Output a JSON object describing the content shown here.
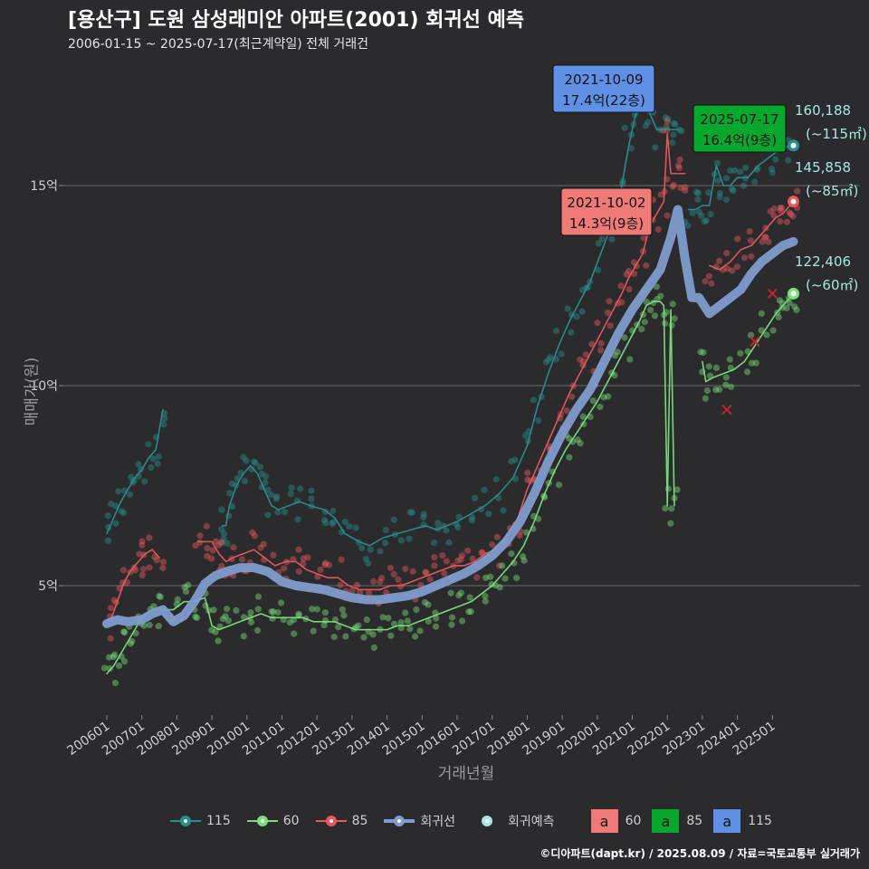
{
  "title": "[용산구] 도원 삼성래미안 아파트(2001) 회귀선 예측",
  "subtitle": "2006-01-15 ~ 2025-07-17(최근계약일) 전체 거래건",
  "footer": "©디아파트(dapt.kr) / 2025.08.09 / 자료=국토교통부 실거래가",
  "legend": {
    "items": [
      {
        "label": "115",
        "color": "#2a8f8c",
        "kind": "series"
      },
      {
        "label": "60",
        "color": "#7be07b",
        "kind": "series"
      },
      {
        "label": "85",
        "color": "#e8585e",
        "kind": "series"
      },
      {
        "label": "회귀선",
        "color": "#7f9ccc",
        "kind": "reg"
      },
      {
        "label": "회귀예측",
        "color": "#a8e6e2",
        "kind": "pred"
      }
    ],
    "boxes": [
      {
        "letter": "a",
        "label": "60",
        "color": "#f07a78"
      },
      {
        "letter": "a",
        "label": "85",
        "color": "#08a82e"
      },
      {
        "letter": "a",
        "label": "115",
        "color": "#5f90e6"
      }
    ]
  },
  "chart_data": {
    "type": "line",
    "xlabel": "거래년월",
    "ylabel": "매매가(원)",
    "x_ticks": [
      "200601",
      "200701",
      "200801",
      "200901",
      "201001",
      "201101",
      "201201",
      "201301",
      "201401",
      "201501",
      "201601",
      "201701",
      "201801",
      "201901",
      "202001",
      "202101",
      "202201",
      "202301",
      "202401",
      "202501"
    ],
    "y_ticks": [
      {
        "value": 5,
        "label": "5억"
      },
      {
        "value": 10,
        "label": "10억"
      },
      {
        "value": 15,
        "label": "15억"
      }
    ],
    "xlim": [
      2006.0,
      2025.9
    ],
    "ylim": [
      2.7,
      18.0
    ],
    "grid": true,
    "series": [
      {
        "name": "115",
        "color": "#2a8f8c",
        "points": [
          [
            2006.0,
            6.3
          ],
          [
            2006.2,
            6.7
          ],
          [
            2006.4,
            7.1
          ],
          [
            2006.6,
            7.4
          ],
          [
            2006.8,
            7.7
          ],
          [
            2007.0,
            7.9
          ],
          [
            2007.2,
            8.2
          ],
          [
            2007.4,
            8.4
          ],
          [
            2007.6,
            9.4
          ],
          null,
          [
            2009.3,
            6.5
          ],
          [
            2009.4,
            6.5
          ],
          [
            2009.5,
            7.0
          ],
          [
            2009.7,
            7.5
          ],
          [
            2009.9,
            7.8
          ],
          [
            2010.1,
            8.0
          ],
          [
            2010.3,
            7.8
          ],
          [
            2010.5,
            7.4
          ],
          [
            2010.7,
            7.0
          ],
          [
            2010.9,
            6.9
          ],
          [
            2011.2,
            7.0
          ],
          [
            2011.5,
            7.1
          ],
          [
            2011.8,
            7.0
          ],
          [
            2012.2,
            6.9
          ],
          [
            2012.5,
            6.7
          ],
          [
            2012.8,
            6.3
          ],
          [
            2013.2,
            6.1
          ],
          [
            2013.5,
            6.0
          ],
          [
            2013.9,
            6.2
          ],
          [
            2014.3,
            6.3
          ],
          [
            2014.7,
            6.4
          ],
          [
            2015.1,
            6.5
          ],
          [
            2015.4,
            6.4
          ],
          [
            2015.7,
            6.5
          ],
          [
            2016.0,
            6.6
          ],
          [
            2016.4,
            6.8
          ],
          [
            2016.8,
            7.0
          ],
          [
            2017.2,
            7.3
          ],
          [
            2017.6,
            7.7
          ],
          [
            2018.0,
            8.5
          ],
          [
            2018.3,
            9.5
          ],
          [
            2018.6,
            10.3
          ],
          [
            2018.9,
            11.0
          ],
          [
            2019.2,
            11.6
          ],
          [
            2019.5,
            12.1
          ],
          [
            2019.8,
            12.6
          ],
          [
            2020.1,
            13.3
          ],
          [
            2020.4,
            14.0
          ],
          [
            2020.7,
            15.0
          ],
          [
            2020.9,
            16.0
          ],
          [
            2021.1,
            16.8
          ],
          [
            2021.3,
            16.9
          ],
          [
            2021.5,
            16.8
          ],
          [
            2021.7,
            16.4
          ],
          [
            2021.9,
            16.4
          ],
          [
            2022.1,
            16.4
          ],
          [
            2022.3,
            16.4
          ],
          null,
          [
            2022.6,
            14.4
          ],
          [
            2022.8,
            14.4
          ],
          [
            2023.0,
            14.5
          ],
          [
            2023.2,
            14.5
          ],
          [
            2023.4,
            15.5
          ],
          [
            2023.6,
            15.0
          ],
          [
            2023.8,
            15.0
          ],
          [
            2024.0,
            15.2
          ],
          [
            2024.3,
            15.2
          ],
          [
            2024.6,
            15.5
          ],
          [
            2024.9,
            15.7
          ],
          [
            2025.2,
            15.9
          ],
          [
            2025.5,
            16.0
          ]
        ]
      },
      {
        "name": "85",
        "color": "#e8585e",
        "points": [
          [
            2006.1,
            4.1
          ],
          [
            2006.3,
            4.6
          ],
          [
            2006.5,
            5.1
          ],
          [
            2006.7,
            5.4
          ],
          [
            2006.9,
            5.6
          ],
          [
            2007.1,
            5.8
          ],
          [
            2007.3,
            5.9
          ],
          [
            2007.5,
            5.7
          ],
          null,
          [
            2008.6,
            6.1
          ],
          [
            2008.8,
            6.1
          ],
          [
            2009.0,
            6.1
          ],
          [
            2009.2,
            5.8
          ],
          [
            2009.4,
            5.6
          ],
          [
            2009.6,
            5.7
          ],
          [
            2009.9,
            5.8
          ],
          [
            2010.2,
            5.9
          ],
          [
            2010.5,
            5.7
          ],
          [
            2010.8,
            5.5
          ],
          [
            2011.1,
            5.6
          ],
          [
            2011.4,
            5.6
          ],
          [
            2011.7,
            5.4
          ],
          [
            2012.0,
            5.3
          ],
          [
            2012.3,
            5.2
          ],
          [
            2012.6,
            5.2
          ],
          [
            2012.9,
            5.0
          ],
          [
            2013.2,
            4.9
          ],
          [
            2013.5,
            4.9
          ],
          [
            2013.8,
            4.9
          ],
          [
            2014.1,
            5.0
          ],
          [
            2014.4,
            5.0
          ],
          [
            2014.7,
            5.1
          ],
          [
            2015.0,
            5.2
          ],
          [
            2015.3,
            5.3
          ],
          [
            2015.6,
            5.4
          ],
          [
            2015.9,
            5.5
          ],
          [
            2016.2,
            5.5
          ],
          [
            2016.5,
            5.6
          ],
          [
            2016.8,
            5.8
          ],
          [
            2017.1,
            5.9
          ],
          [
            2017.4,
            6.2
          ],
          [
            2017.7,
            6.6
          ],
          [
            2018.0,
            7.4
          ],
          [
            2018.3,
            8.0
          ],
          [
            2018.6,
            8.6
          ],
          [
            2018.9,
            9.2
          ],
          [
            2019.2,
            9.8
          ],
          [
            2019.5,
            10.3
          ],
          [
            2019.8,
            10.8
          ],
          [
            2020.1,
            11.3
          ],
          [
            2020.4,
            11.8
          ],
          [
            2020.7,
            12.3
          ],
          [
            2020.9,
            12.7
          ],
          [
            2021.1,
            13.0
          ],
          [
            2021.3,
            13.3
          ],
          [
            2021.5,
            14.0
          ],
          [
            2021.7,
            14.3
          ],
          [
            2021.9,
            14.6
          ],
          [
            2022.0,
            16.3
          ],
          [
            2022.1,
            15.3
          ],
          [
            2022.3,
            15.3
          ],
          [
            2022.5,
            15.3
          ],
          null,
          [
            2023.2,
            13.0
          ],
          [
            2023.5,
            12.9
          ],
          [
            2023.8,
            13.1
          ],
          [
            2024.1,
            13.4
          ],
          [
            2024.4,
            13.5
          ],
          [
            2024.7,
            13.8
          ],
          [
            2024.9,
            14.0
          ],
          [
            2025.1,
            14.2
          ],
          [
            2025.3,
            14.3
          ],
          [
            2025.5,
            14.5
          ],
          [
            2025.6,
            14.6
          ]
        ]
      },
      {
        "name": "60",
        "color": "#7be07b",
        "points": [
          [
            2006.0,
            2.8
          ],
          [
            2006.2,
            3.0
          ],
          [
            2006.4,
            3.3
          ],
          [
            2006.6,
            3.6
          ],
          [
            2006.8,
            3.9
          ],
          [
            2007.0,
            4.2
          ],
          [
            2007.3,
            4.4
          ],
          [
            2007.6,
            4.4
          ],
          [
            2007.9,
            4.4
          ],
          [
            2008.2,
            4.6
          ],
          [
            2008.5,
            4.6
          ],
          [
            2008.8,
            4.7
          ],
          [
            2009.0,
            4.0
          ],
          [
            2009.2,
            3.9
          ],
          [
            2009.5,
            4.0
          ],
          [
            2009.8,
            4.1
          ],
          [
            2010.1,
            4.2
          ],
          [
            2010.4,
            4.3
          ],
          [
            2010.7,
            4.2
          ],
          [
            2011.0,
            4.2
          ],
          [
            2011.3,
            4.2
          ],
          [
            2011.6,
            4.2
          ],
          [
            2011.9,
            4.1
          ],
          [
            2012.2,
            4.1
          ],
          [
            2012.5,
            4.1
          ],
          [
            2012.8,
            4.0
          ],
          [
            2013.1,
            3.9
          ],
          [
            2013.4,
            3.9
          ],
          [
            2013.7,
            3.9
          ],
          [
            2014.0,
            3.9
          ],
          [
            2014.3,
            4.0
          ],
          [
            2014.6,
            4.0
          ],
          [
            2014.9,
            4.1
          ],
          [
            2015.2,
            4.2
          ],
          [
            2015.5,
            4.3
          ],
          [
            2015.8,
            4.4
          ],
          [
            2016.1,
            4.5
          ],
          [
            2016.4,
            4.6
          ],
          [
            2016.7,
            4.8
          ],
          [
            2017.0,
            5.0
          ],
          [
            2017.3,
            5.3
          ],
          [
            2017.6,
            5.6
          ],
          [
            2017.9,
            6.0
          ],
          [
            2018.2,
            6.6
          ],
          [
            2018.5,
            7.3
          ],
          [
            2018.8,
            7.9
          ],
          [
            2019.1,
            8.4
          ],
          [
            2019.4,
            8.8
          ],
          [
            2019.7,
            9.2
          ],
          [
            2020.0,
            9.6
          ],
          [
            2020.3,
            10.1
          ],
          [
            2020.6,
            10.6
          ],
          [
            2020.9,
            11.1
          ],
          [
            2021.2,
            11.6
          ],
          [
            2021.4,
            12.0
          ],
          [
            2021.6,
            12.1
          ],
          [
            2021.8,
            12.1
          ],
          [
            2021.9,
            12.0
          ],
          [
            2022.0,
            7.0
          ],
          [
            2022.1,
            11.9
          ],
          [
            2022.2,
            7.0
          ],
          null,
          [
            2023.0,
            10.6
          ],
          [
            2023.1,
            10.1
          ],
          [
            2023.3,
            10.2
          ],
          [
            2023.6,
            10.3
          ],
          [
            2023.9,
            10.4
          ],
          [
            2024.2,
            10.6
          ],
          [
            2024.5,
            11.0
          ],
          [
            2024.8,
            11.4
          ],
          [
            2025.1,
            11.8
          ],
          [
            2025.3,
            12.0
          ],
          [
            2025.5,
            12.2
          ],
          [
            2025.6,
            12.3
          ]
        ]
      },
      {
        "name": "회귀선",
        "color": "#7f9ccc",
        "points": [
          [
            2006.0,
            4.05
          ],
          [
            2006.3,
            4.15
          ],
          [
            2006.6,
            4.1
          ],
          [
            2007.0,
            4.15
          ],
          [
            2007.3,
            4.3
          ],
          [
            2007.6,
            4.4
          ],
          [
            2007.9,
            4.1
          ],
          [
            2008.2,
            4.25
          ],
          [
            2008.5,
            4.6
          ],
          [
            2008.8,
            5.05
          ],
          [
            2009.1,
            5.25
          ],
          [
            2009.4,
            5.35
          ],
          [
            2009.8,
            5.45
          ],
          [
            2010.2,
            5.45
          ],
          [
            2010.6,
            5.35
          ],
          [
            2011.0,
            5.1
          ],
          [
            2011.4,
            5.0
          ],
          [
            2011.8,
            4.95
          ],
          [
            2012.2,
            4.9
          ],
          [
            2012.6,
            4.8
          ],
          [
            2013.0,
            4.7
          ],
          [
            2013.4,
            4.65
          ],
          [
            2013.8,
            4.65
          ],
          [
            2014.2,
            4.7
          ],
          [
            2014.6,
            4.75
          ],
          [
            2015.0,
            4.85
          ],
          [
            2015.4,
            5.0
          ],
          [
            2015.8,
            5.15
          ],
          [
            2016.2,
            5.3
          ],
          [
            2016.6,
            5.5
          ],
          [
            2017.0,
            5.75
          ],
          [
            2017.4,
            6.1
          ],
          [
            2017.8,
            6.6
          ],
          [
            2018.2,
            7.3
          ],
          [
            2018.6,
            8.1
          ],
          [
            2019.0,
            8.8
          ],
          [
            2019.4,
            9.4
          ],
          [
            2019.8,
            9.9
          ],
          [
            2020.2,
            10.6
          ],
          [
            2020.6,
            11.3
          ],
          [
            2021.0,
            11.9
          ],
          [
            2021.4,
            12.4
          ],
          [
            2021.8,
            12.9
          ],
          [
            2022.1,
            13.7
          ],
          [
            2022.3,
            14.4
          ],
          [
            2022.5,
            13.2
          ],
          [
            2022.7,
            12.2
          ],
          [
            2022.9,
            12.2
          ],
          [
            2023.2,
            11.8
          ],
          [
            2023.5,
            12.0
          ],
          [
            2023.8,
            12.2
          ],
          [
            2024.1,
            12.4
          ],
          [
            2024.4,
            12.8
          ],
          [
            2024.7,
            13.1
          ],
          [
            2025.0,
            13.3
          ],
          [
            2025.3,
            13.5
          ],
          [
            2025.6,
            13.6
          ]
        ]
      }
    ],
    "highlights": [
      {
        "date": "2021-10-09",
        "value_text": "17.4억(22층)",
        "x": 2021.77,
        "y": 17.4,
        "color": "#5f90e6"
      },
      {
        "date": "2021-10-02",
        "value_text": "14.3억(9층)",
        "x": 2021.75,
        "y": 14.3,
        "color": "#f07a78"
      },
      {
        "date": "2025-07-17",
        "value_text": "16.4억(9층)",
        "x": 2025.54,
        "y": 16.4,
        "color": "#08a82e"
      }
    ],
    "predictions": [
      {
        "value": "160,188",
        "area": "(~115㎡)",
        "x": 2025.6,
        "y": 16.0,
        "color": "#2a8f8c"
      },
      {
        "value": "145,858",
        "area": "(~85㎡)",
        "x": 2025.6,
        "y": 14.6,
        "color": "#e8585e"
      },
      {
        "value": "122,406",
        "area": "(~60㎡)",
        "x": 2025.6,
        "y": 12.3,
        "color": "#7be07b"
      }
    ],
    "cancelled_marks": [
      [
        2023.7,
        9.4
      ],
      [
        2024.5,
        11.1
      ],
      [
        2025.0,
        12.3
      ]
    ]
  }
}
